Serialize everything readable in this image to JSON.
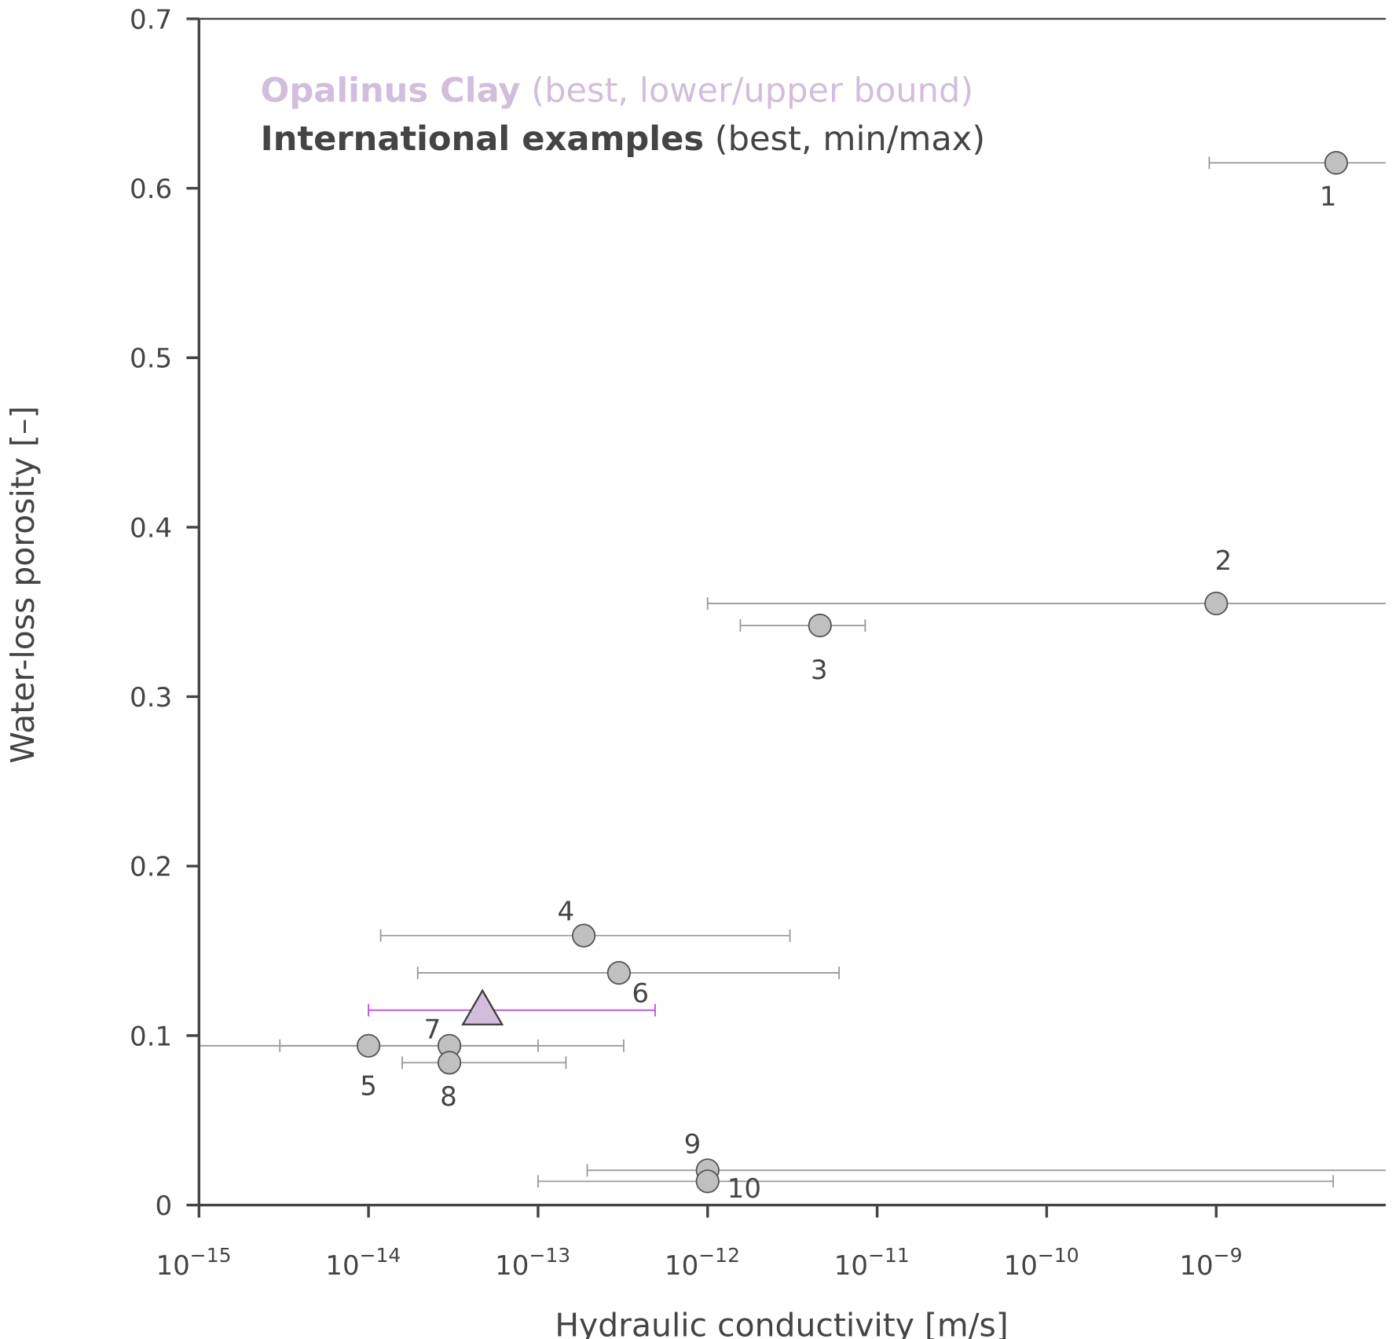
{
  "chart_data": {
    "type": "scatter",
    "xlabel": "Hydraulic conductivity [m/s]",
    "ylabel": "Water-loss porosity [–]",
    "xscale": "log",
    "xlim": [
      1e-15,
      1e-08
    ],
    "ylim": [
      0,
      0.7
    ],
    "x_ticks": [
      {
        "value": 1e-15,
        "base": "10",
        "exp": "−15"
      },
      {
        "value": 1e-14,
        "base": "10",
        "exp": "−14"
      },
      {
        "value": 1e-13,
        "base": "10",
        "exp": "−13"
      },
      {
        "value": 1e-12,
        "base": "10",
        "exp": "−12"
      },
      {
        "value": 1e-11,
        "base": "10",
        "exp": "−11"
      },
      {
        "value": 1e-10,
        "base": "10",
        "exp": "−10"
      },
      {
        "value": 1e-09,
        "base": "10",
        "exp": "−9"
      }
    ],
    "y_ticks": [
      {
        "value": 0,
        "label": "0"
      },
      {
        "value": 0.1,
        "label": "0.1"
      },
      {
        "value": 0.2,
        "label": "0.2"
      },
      {
        "value": 0.3,
        "label": "0.3"
      },
      {
        "value": 0.4,
        "label": "0.4"
      },
      {
        "value": 0.5,
        "label": "0.5"
      },
      {
        "value": 0.6,
        "label": "0.6"
      },
      {
        "value": 0.7,
        "label": "0.7"
      }
    ],
    "legend": {
      "placement": "top-left",
      "entries": [
        {
          "bold": "Opalinus Clay",
          "rest": " (best, lower/upper bound)",
          "color": "#d2bedc"
        },
        {
          "bold": "International examples",
          "rest": " (best, min/max)",
          "color": "#444444"
        }
      ]
    },
    "series": [
      {
        "name": "Opalinus Clay",
        "marker": "triangle",
        "fill": "#d2bedc",
        "bar_color": "#b84fe0",
        "points": [
          {
            "label": "",
            "x": 4.7e-14,
            "xmin": 1e-14,
            "xmax": 4.9e-13,
            "y": 0.115
          }
        ]
      },
      {
        "name": "International examples",
        "marker": "circle",
        "fill": "#c0c0c0",
        "bar_color": "#999999",
        "points": [
          {
            "label": "1",
            "x": 5.1e-09,
            "xmin": 9.1e-10,
            "xmax": 2e-08,
            "y": 0.615
          },
          {
            "label": "2",
            "x": 1e-09,
            "xmin": 1e-12,
            "xmax": 2e-08,
            "y": 0.355
          },
          {
            "label": "3",
            "x": 4.6e-12,
            "xmin": 1.56e-12,
            "xmax": 8.5e-12,
            "y": 0.342
          },
          {
            "label": "4",
            "x": 1.86e-13,
            "xmin": 1.18e-14,
            "xmax": 3.06e-12,
            "y": 0.159
          },
          {
            "label": "5",
            "x": 1e-14,
            "xmin": 5e-16,
            "xmax": 1e-13,
            "y": 0.094
          },
          {
            "label": "6",
            "x": 3e-13,
            "xmin": 1.95e-14,
            "xmax": 5.96e-12,
            "y": 0.137
          },
          {
            "label": "7",
            "x": 3e-14,
            "xmin": 3e-15,
            "xmax": 3.2e-13,
            "y": 0.094
          },
          {
            "label": "8",
            "x": 3e-14,
            "xmin": 1.58e-14,
            "xmax": 1.46e-13,
            "y": 0.084
          },
          {
            "label": "9",
            "x": 1e-12,
            "xmin": 1.95e-13,
            "xmax": 2e-08,
            "y": 0.0205
          },
          {
            "label": "10",
            "x": 1e-12,
            "xmin": 1e-13,
            "xmax": 4.9e-09,
            "y": 0.014
          }
        ]
      }
    ]
  }
}
